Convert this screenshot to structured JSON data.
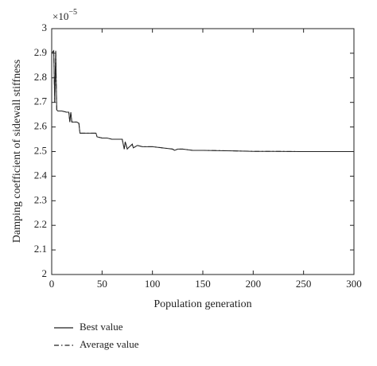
{
  "chart_data": {
    "type": "line",
    "y_label": "Damping coefficient of sidewall stiffness",
    "x_label": "Population generation",
    "y_multiplier": {
      "base": "×10",
      "exponent": "−5"
    },
    "x": [
      0,
      2,
      3,
      4,
      5,
      6,
      10,
      15,
      17,
      18,
      19,
      20,
      21,
      25,
      27,
      28,
      35,
      44,
      45,
      50,
      55,
      60,
      70,
      72,
      73,
      75,
      76,
      80,
      81,
      85,
      90,
      100,
      110,
      120,
      122,
      125,
      130,
      140,
      150,
      180,
      200,
      220,
      250,
      300
    ],
    "series": [
      {
        "name": "Best value",
        "color": "#222222",
        "dash": "solid",
        "values": [
          2.9,
          2.91,
          2.7,
          2.91,
          2.67,
          2.665,
          2.665,
          2.66,
          2.66,
          2.62,
          2.66,
          2.62,
          2.62,
          2.62,
          2.615,
          2.575,
          2.575,
          2.575,
          2.56,
          2.555,
          2.555,
          2.55,
          2.55,
          2.51,
          2.54,
          2.51,
          2.515,
          2.53,
          2.515,
          2.525,
          2.52,
          2.52,
          2.515,
          2.51,
          2.505,
          2.51,
          2.51,
          2.505,
          2.505,
          2.503,
          2.501,
          2.501,
          2.5,
          2.5
        ]
      },
      {
        "name": "Average value",
        "color": "#222222",
        "dash": "dashdot",
        "values": [
          2.9,
          2.91,
          2.7,
          2.91,
          2.67,
          2.665,
          2.665,
          2.66,
          2.66,
          2.62,
          2.66,
          2.62,
          2.62,
          2.62,
          2.615,
          2.575,
          2.575,
          2.575,
          2.56,
          2.555,
          2.555,
          2.55,
          2.55,
          2.51,
          2.54,
          2.51,
          2.515,
          2.53,
          2.515,
          2.525,
          2.52,
          2.52,
          2.515,
          2.51,
          2.505,
          2.51,
          2.51,
          2.505,
          2.505,
          2.503,
          2.501,
          2.501,
          2.5,
          2.5
        ]
      }
    ],
    "xlim": [
      0,
      300
    ],
    "xticks": [
      0,
      50,
      100,
      150,
      200,
      250,
      300
    ],
    "ylim": [
      2,
      3
    ],
    "yticks": [
      2,
      2.1,
      2.2,
      2.3,
      2.4,
      2.5,
      2.6,
      2.7,
      2.8,
      2.9,
      3
    ],
    "grid": false
  }
}
